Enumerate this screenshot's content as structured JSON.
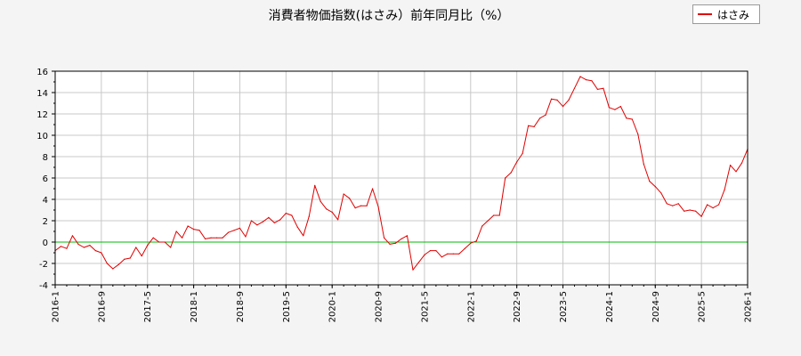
{
  "chart_data": {
    "type": "line",
    "title": "消費者物価指数(はさみ）前年同月比（%）",
    "xlabel": "",
    "ylabel": "",
    "ylim": [
      -4,
      16
    ],
    "yticks": [
      -4,
      -2,
      0,
      2,
      4,
      6,
      8,
      10,
      12,
      14,
      16
    ],
    "xticks": [
      "2016-1",
      "2016-9",
      "2017-5",
      "2018-1",
      "2018-9",
      "2019-5",
      "2020-1",
      "2020-9",
      "2021-5",
      "2022-1",
      "2022-9",
      "2023-5",
      "2024-1",
      "2024-9",
      "2025-5",
      "2026-1"
    ],
    "x_start": "2016-1",
    "x_end": "2026-1",
    "grid": true,
    "legend_position": "top-right",
    "reference_line": {
      "y": 0,
      "color": "#00bb00"
    },
    "series": [
      {
        "name": "はさみ",
        "color": "#e00000",
        "values": [
          -0.8,
          -0.4,
          -0.6,
          0.6,
          -0.2,
          -0.5,
          -0.3,
          -0.8,
          -1.0,
          -2.0,
          -2.5,
          -2.1,
          -1.6,
          -1.5,
          -0.5,
          -1.3,
          -0.3,
          0.4,
          0.0,
          0.0,
          -0.5,
          1.0,
          0.4,
          1.5,
          1.2,
          1.1,
          0.3,
          0.4,
          0.4,
          0.4,
          0.9,
          1.1,
          1.3,
          0.5,
          2.0,
          1.6,
          1.9,
          2.3,
          1.8,
          2.1,
          2.7,
          2.5,
          1.4,
          0.6,
          2.4,
          5.3,
          3.8,
          3.1,
          2.8,
          2.1,
          4.5,
          4.1,
          3.2,
          3.4,
          3.4,
          5.0,
          3.3,
          0.4,
          -0.2,
          -0.1,
          0.3,
          0.6,
          -2.6,
          -1.9,
          -1.2,
          -0.8,
          -0.8,
          -1.4,
          -1.1,
          -1.1,
          -1.1,
          -0.6,
          -0.1,
          0.1,
          1.5,
          2.0,
          2.5,
          2.5,
          6.0,
          6.5,
          7.5,
          8.3,
          10.9,
          10.8,
          11.6,
          11.9,
          13.4,
          13.3,
          12.7,
          13.3,
          14.4,
          15.5,
          15.2,
          15.1,
          14.3,
          14.4,
          12.6,
          12.4,
          12.7,
          11.6,
          11.5,
          10.1,
          7.3,
          5.7,
          5.2,
          4.6,
          3.6,
          3.4,
          3.6,
          2.9,
          3.0,
          2.9,
          2.4,
          3.5,
          3.2,
          3.5,
          4.9,
          7.2,
          6.6,
          7.4,
          8.7
        ]
      }
    ]
  }
}
